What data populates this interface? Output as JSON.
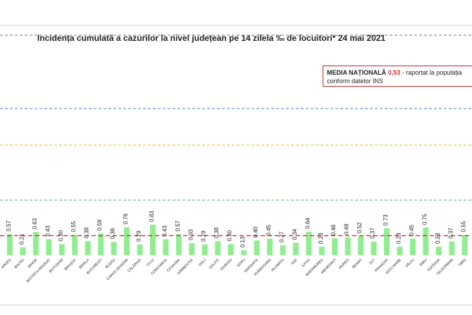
{
  "header": {
    "title": "Incidența cumulată a cazurilor la nivel județean pe 14 zilela ‰ de locuitori*  24 mai 2021"
  },
  "legend": {
    "label": "MEDIA NAȚIONALĂ",
    "value": "0,53",
    "rest_line1": "- raportat la populația",
    "line2": "conform datelor INS"
  },
  "colors": {
    "bar": "#90ee90",
    "national_average_line": "#d32f2f",
    "gridline_blue": "#4a7fb5",
    "gridline_yellow": "#e6b800",
    "gridline_green": "#4caf50"
  },
  "chart_data": {
    "type": "bar",
    "title": "Incidența cumulată a cazurilor la nivel județean pe 14 zilela ‰ de locuitori*  24 mai 2021",
    "categories": [
      "ARGEȘ",
      "BACĂU",
      "BIHOR",
      "BISTRIȚA-NĂSĂUD",
      "BOTOȘANI",
      "BRAȘOV",
      "BRĂILA",
      "BUCUREȘTI",
      "BUZĂU",
      "CARAȘ-SEVERIN",
      "CĂLĂRAȘI",
      "CLUJ",
      "CONSTANȚA",
      "COVASNA",
      "DÂMBOVIȚA",
      "DOLJ",
      "GALAȚI",
      "GIURGIU",
      "GORJ",
      "HARGHITA",
      "HUNEDOARA",
      "IALOMIȚA",
      "IAȘI",
      "ILFOV",
      "MARAMUREȘ",
      "MEHEDINȚI",
      "MUREȘ",
      "NEAMȚ",
      "OLT",
      "PRAHOVA",
      "SATU MARE",
      "SĂLAJ",
      "SIBIU",
      "SUCEAVA",
      "TELEORMAN",
      "TIMIȘ"
    ],
    "value_labels": [
      "0.57",
      "0.21",
      "0.63",
      "0.43",
      "0.30",
      "0.55",
      "0.38",
      "0.59",
      "0.36",
      "0.76",
      "0.29",
      "0.83",
      "0.43",
      "0.57",
      "0.33",
      "0.29",
      "0.38",
      "0.30",
      "0.13",
      "0.40",
      "0.45",
      "0.27",
      "0.34",
      "0.64",
      "0.23",
      "0.46",
      "0.48",
      "0.52",
      "0.37",
      "0.73",
      "0.23",
      "0.45",
      "0.75",
      "0.23",
      "0.37",
      "0.55"
    ],
    "values": [
      0.57,
      0.21,
      0.63,
      0.43,
      0.3,
      0.55,
      0.38,
      0.59,
      0.36,
      0.76,
      0.29,
      0.83,
      0.43,
      0.57,
      0.33,
      0.29,
      0.38,
      0.3,
      0.13,
      0.4,
      0.45,
      0.27,
      0.34,
      0.64,
      0.23,
      0.46,
      0.48,
      0.52,
      0.37,
      0.73,
      0.23,
      0.45,
      0.75,
      0.23,
      0.37,
      0.55
    ],
    "national_average": 0.53,
    "reference_lines": [
      1.5,
      3,
      4,
      6
    ],
    "ylim": [
      0,
      8
    ],
    "grid": false,
    "legend_position": "top-right"
  }
}
